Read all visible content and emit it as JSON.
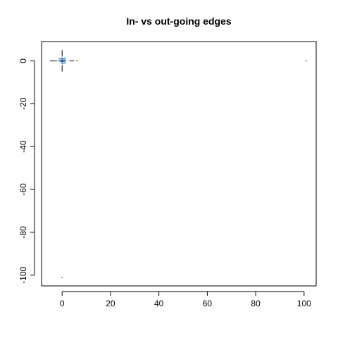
{
  "chart_data": {
    "type": "heatmap",
    "title": "In- vs out-going edges",
    "xlabel": "",
    "ylabel": "",
    "xlim": [
      -8.5,
      105
    ],
    "ylim": [
      -105,
      9
    ],
    "x_ticks": [
      0,
      20,
      40,
      60,
      80,
      100
    ],
    "y_ticks": [
      0,
      -20,
      -40,
      -60,
      -80,
      -100
    ],
    "x_tick_labels": [
      "0",
      "20",
      "40",
      "60",
      "80",
      "100"
    ],
    "y_tick_labels": [
      "0",
      "-20",
      "-40",
      "-60",
      "-80",
      "-100"
    ],
    "grid": false,
    "legend": "none",
    "color_low": "#c6dbef",
    "color_high": "#08519c",
    "cells": [
      {
        "x": 0,
        "y": 0,
        "intensity": 1.0
      },
      {
        "x": 1,
        "y": 0,
        "intensity": 0.6
      },
      {
        "x": 0,
        "y": 1,
        "intensity": 0.5
      },
      {
        "x": -1,
        "y": 0,
        "intensity": 0.3
      },
      {
        "x": 0,
        "y": -1,
        "intensity": 0.3
      },
      {
        "x": 1,
        "y": 1,
        "intensity": 0.35
      },
      {
        "x": -1,
        "y": 1,
        "intensity": 0.2
      },
      {
        "x": 1,
        "y": -1,
        "intensity": 0.2
      }
    ],
    "segments": [
      {
        "x1": -5,
        "y1": 0,
        "x2": -2,
        "y2": 0
      },
      {
        "x1": 3,
        "y1": 0,
        "x2": 5,
        "y2": 0
      },
      {
        "x1": 0,
        "y1": 5,
        "x2": 0,
        "y2": 2
      },
      {
        "x1": 0,
        "y1": -2,
        "x2": 0,
        "y2": -5
      }
    ],
    "points": [
      {
        "x": 6,
        "y": 0
      },
      {
        "x": 101,
        "y": 0
      },
      {
        "x": 0,
        "y": -101
      }
    ]
  }
}
